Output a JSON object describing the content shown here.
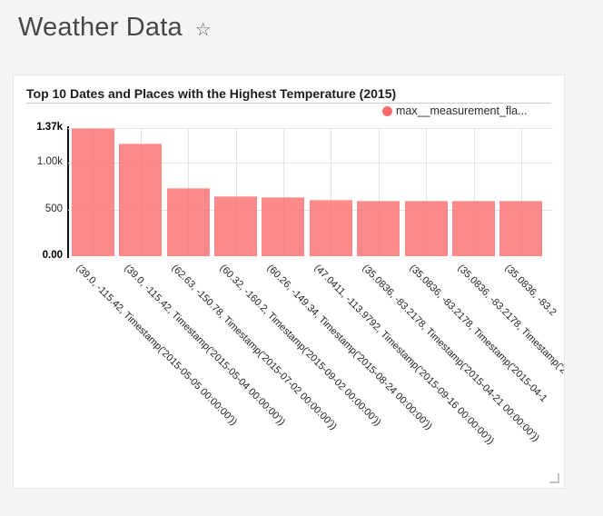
{
  "page": {
    "title": "Weather Data",
    "background_color": "#f5f5f5",
    "favorite_icon": "star-outline",
    "favorite_glyph": "☆"
  },
  "card": {
    "title": "Top 10 Dates and Places with the Highest Temperature (2015)",
    "background_color": "#ffffff"
  },
  "chart_data": {
    "type": "bar",
    "title": "Top 10 Dates and Places with the Highest Temperature (2015)",
    "legend_position": "top-right",
    "grid": true,
    "xlabel": "",
    "ylabel": "",
    "ylim": [
      0,
      1370
    ],
    "bar_color": "#fc6b6b",
    "bar_opacity": 0.8,
    "series": [
      {
        "name": "max__measurement_fla...",
        "values": [
          1370,
          1205,
          730,
          640,
          635,
          600,
          595,
          595,
          590,
          590
        ]
      }
    ],
    "categories": [
      "(39.0, -115.42, Timestamp('2015-05-05 00:00:00'))",
      "(39.0, -115.42, Timestamp('2015-05-04 00:00:00'))",
      "(62.63, -150.78, Timestamp('2015-07-02 00:00:00'))",
      "(60.32, -160.2, Timestamp('2015-09-02 00:00:00'))",
      "(60.26, -149.34, Timestamp('2015-08-24 00:00:00'))",
      "(47.0411, -113.9792, Timestamp('2015-09-16 00:00:00'))",
      "(35.0836, -83.2178, Timestamp('2015-04-21 00:00:00'))",
      "(35.0836, -83.2178, Timestamp('2015-04-1",
      "(35.0836, -83.2178, Timestamp('2",
      "(35.0836, -83.2"
    ],
    "yticks": [
      {
        "label": "0.00",
        "value": 0,
        "bold": true
      },
      {
        "label": "500",
        "value": 500,
        "bold": false
      },
      {
        "label": "1.00k",
        "value": 1000,
        "bold": false
      },
      {
        "label": "1.37k",
        "value": 1370,
        "bold": true
      }
    ]
  }
}
